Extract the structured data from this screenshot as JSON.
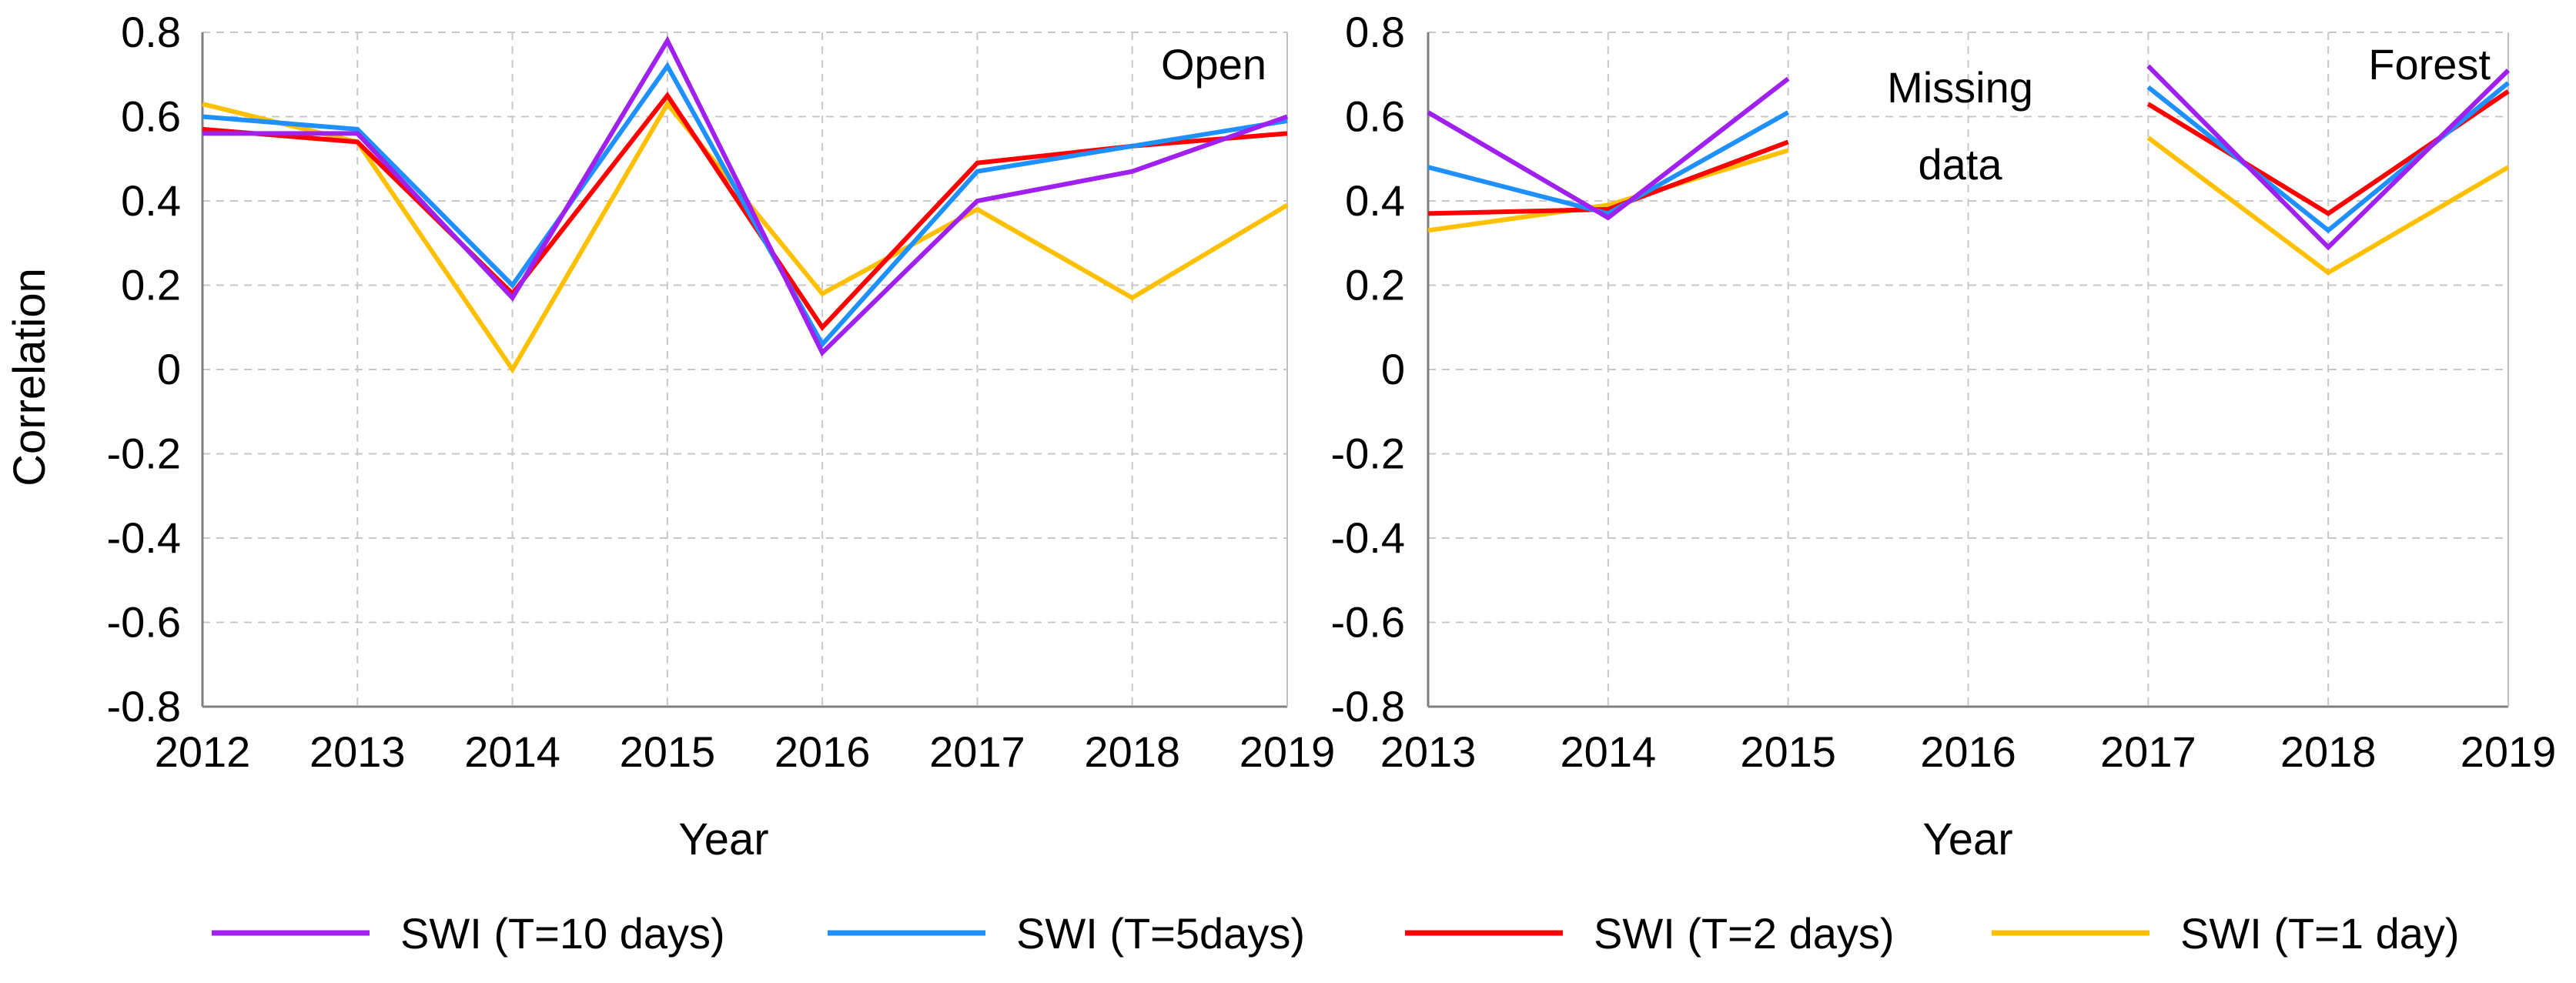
{
  "chart_data": [
    {
      "type": "line",
      "corner_label": "Open",
      "xlabel": "Year",
      "ylabel": "Correlation",
      "x": [
        "2012",
        "2013",
        "2014",
        "2015",
        "2016",
        "2017",
        "2018",
        "2019"
      ],
      "ylim": [
        -0.8,
        0.8
      ],
      "yticks": [
        "0.8",
        "0.6",
        "0.4",
        "0.2",
        "0",
        "-0.2",
        "-0.4",
        "-0.6",
        "-0.8"
      ],
      "grid": true,
      "series": [
        {
          "name": "SWI (T=10 days)",
          "color": "#A020F0",
          "values": [
            0.56,
            0.56,
            0.17,
            0.78,
            0.04,
            0.4,
            0.47,
            0.6
          ]
        },
        {
          "name": "SWI (T=5days)",
          "color": "#1E90FF",
          "values": [
            0.6,
            0.57,
            0.2,
            0.72,
            0.06,
            0.47,
            0.53,
            0.59
          ]
        },
        {
          "name": "SWI (T=2 days)",
          "color": "#FF0000",
          "values": [
            0.57,
            0.54,
            0.18,
            0.65,
            0.1,
            0.49,
            0.53,
            0.56
          ]
        },
        {
          "name": "SWI (T=1 day)",
          "color": "#FFC000",
          "values": [
            0.63,
            0.54,
            0.0,
            0.63,
            0.18,
            0.38,
            0.17,
            0.39
          ]
        }
      ]
    },
    {
      "type": "line",
      "corner_label": "Forest",
      "annotation": [
        "Missing",
        "data"
      ],
      "xlabel": "Year",
      "x": [
        "2013",
        "2014",
        "2015",
        "2016",
        "2017",
        "2018",
        "2019"
      ],
      "ylim": [
        -0.8,
        0.8
      ],
      "yticks": [
        "0.8",
        "0.6",
        "0.4",
        "0.2",
        "0",
        "-0.2",
        "-0.4",
        "-0.6",
        "-0.8"
      ],
      "grid": true,
      "series": [
        {
          "name": "SWI (T=10 days)",
          "color": "#A020F0",
          "values": [
            0.61,
            0.36,
            0.69,
            null,
            0.72,
            0.29,
            0.71
          ]
        },
        {
          "name": "SWI (T=5days)",
          "color": "#1E90FF",
          "values": [
            0.48,
            0.37,
            0.61,
            null,
            0.67,
            0.33,
            0.68
          ]
        },
        {
          "name": "SWI (T=2 days)",
          "color": "#FF0000",
          "values": [
            0.37,
            0.38,
            0.54,
            null,
            0.63,
            0.37,
            0.66
          ]
        },
        {
          "name": "SWI (T=1 day)",
          "color": "#FFC000",
          "values": [
            0.33,
            0.39,
            0.52,
            null,
            0.55,
            0.23,
            0.48
          ]
        }
      ]
    }
  ],
  "legend": {
    "placement": "bottom",
    "items": [
      {
        "label": "SWI (T=10 days)",
        "color": "#A020F0"
      },
      {
        "label": "SWI (T=5days)",
        "color": "#1E90FF"
      },
      {
        "label": "SWI (T=2 days)",
        "color": "#FF0000"
      },
      {
        "label": "SWI (T=1 day)",
        "color": "#FFC000"
      }
    ]
  }
}
